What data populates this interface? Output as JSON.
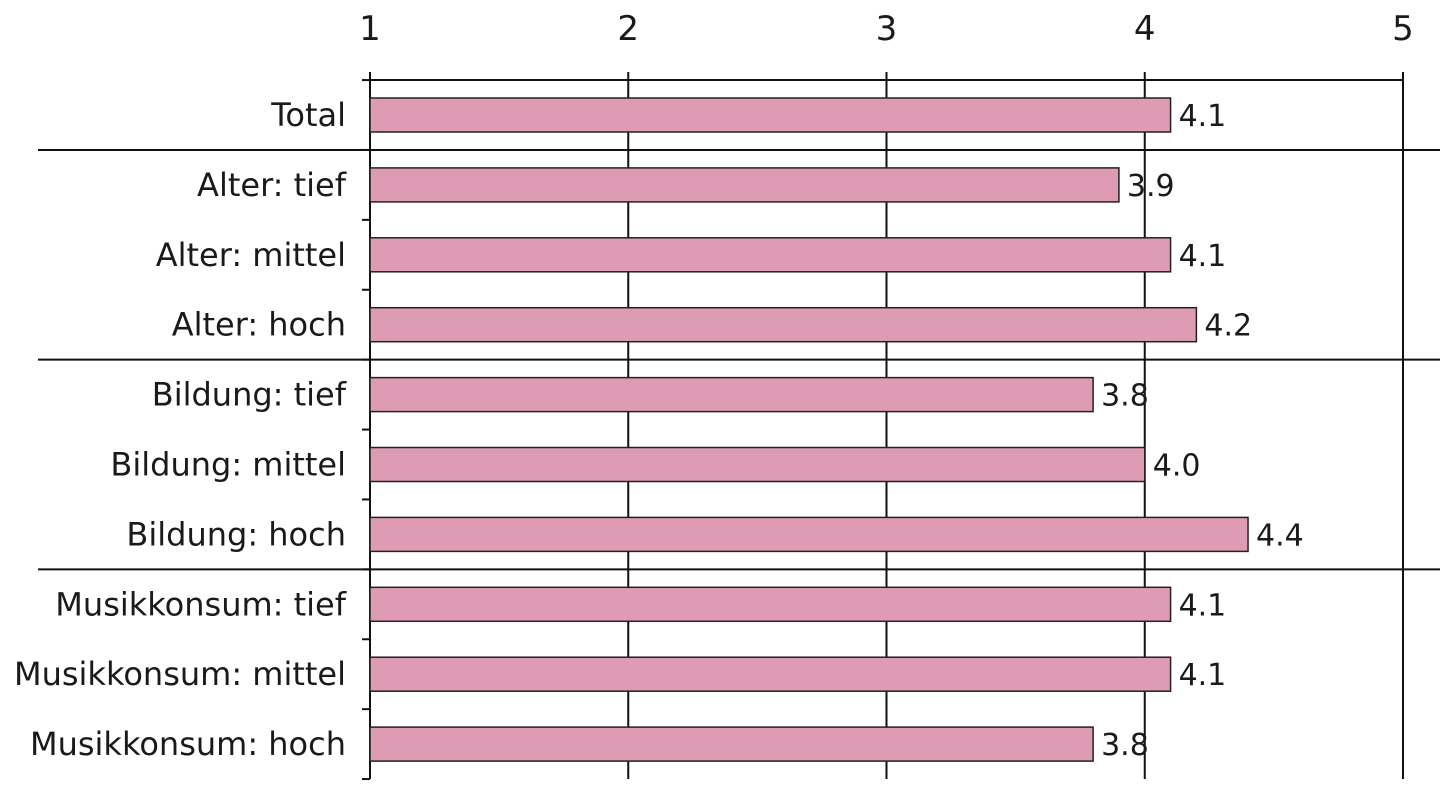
{
  "chart_data": {
    "type": "bar",
    "orientation": "horizontal",
    "title": "",
    "xlabel": "",
    "ylabel": "",
    "xlim": [
      1,
      5
    ],
    "ticks": [
      "1",
      "2",
      "3",
      "4",
      "5"
    ],
    "tick_values": [
      1,
      2,
      3,
      4,
      5
    ],
    "grid": true,
    "bar_color": "#dd9cb4",
    "groups": [
      {
        "categories": [
          "Total"
        ]
      },
      {
        "categories": [
          "Alter: tief",
          "Alter: mittel",
          "Alter: hoch"
        ]
      },
      {
        "categories": [
          "Bildung: tief",
          "Bildung: mittel",
          "Bildung: hoch"
        ]
      },
      {
        "categories": [
          "Musikkonsum: tief",
          "Musikkonsum: mittel",
          "Musikkonsum: hoch"
        ]
      }
    ],
    "categories": [
      "Total",
      "Alter: tief",
      "Alter: mittel",
      "Alter: hoch",
      "Bildung: tief",
      "Bildung: mittel",
      "Bildung: hoch",
      "Musikkonsum: tief",
      "Musikkonsum: mittel",
      "Musikkonsum: hoch"
    ],
    "values": [
      4.1,
      3.9,
      4.1,
      4.2,
      3.8,
      4.0,
      4.4,
      4.1,
      4.1,
      3.8
    ],
    "value_labels": [
      "4.1",
      "3.9",
      "4.1",
      "4.2",
      "3.8",
      "4.0",
      "4.4",
      "4.1",
      "4.1",
      "3.8"
    ]
  }
}
